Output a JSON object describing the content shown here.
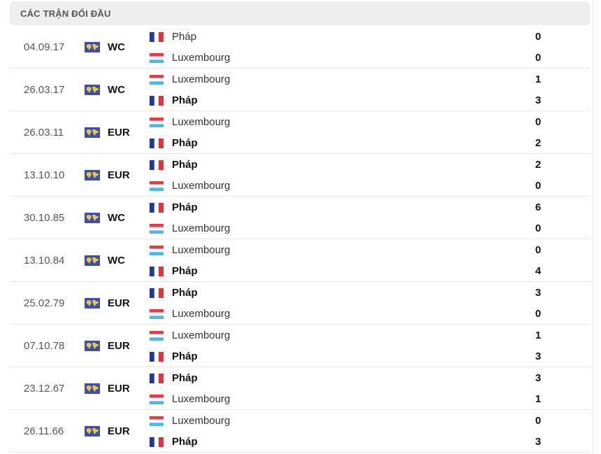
{
  "header": {
    "title": "CÁC TRẬN ĐỐI ĐẦU"
  },
  "colors": {
    "france": [
      "#1f3a93",
      "#ffffff",
      "#e8303a"
    ],
    "luxembourg": [
      "#ea3a41",
      "#ffffff",
      "#4fb6ea"
    ],
    "competition_icon": "#3d4fa8"
  },
  "matches": [
    {
      "date": "04.09.17",
      "comp": "WC",
      "home": {
        "name": "Pháp",
        "flag": "france",
        "score": "0",
        "winner": false
      },
      "away": {
        "name": "Luxembourg",
        "flag": "luxembourg",
        "score": "0",
        "winner": false
      }
    },
    {
      "date": "26.03.17",
      "comp": "WC",
      "home": {
        "name": "Luxembourg",
        "flag": "luxembourg",
        "score": "1",
        "winner": false
      },
      "away": {
        "name": "Pháp",
        "flag": "france",
        "score": "3",
        "winner": true
      }
    },
    {
      "date": "26.03.11",
      "comp": "EUR",
      "home": {
        "name": "Luxembourg",
        "flag": "luxembourg",
        "score": "0",
        "winner": false
      },
      "away": {
        "name": "Pháp",
        "flag": "france",
        "score": "2",
        "winner": true
      }
    },
    {
      "date": "13.10.10",
      "comp": "EUR",
      "home": {
        "name": "Pháp",
        "flag": "france",
        "score": "2",
        "winner": true
      },
      "away": {
        "name": "Luxembourg",
        "flag": "luxembourg",
        "score": "0",
        "winner": false
      }
    },
    {
      "date": "30.10.85",
      "comp": "WC",
      "home": {
        "name": "Pháp",
        "flag": "france",
        "score": "6",
        "winner": true
      },
      "away": {
        "name": "Luxembourg",
        "flag": "luxembourg",
        "score": "0",
        "winner": false
      }
    },
    {
      "date": "13.10.84",
      "comp": "WC",
      "home": {
        "name": "Luxembourg",
        "flag": "luxembourg",
        "score": "0",
        "winner": false
      },
      "away": {
        "name": "Pháp",
        "flag": "france",
        "score": "4",
        "winner": true
      }
    },
    {
      "date": "25.02.79",
      "comp": "EUR",
      "home": {
        "name": "Pháp",
        "flag": "france",
        "score": "3",
        "winner": true
      },
      "away": {
        "name": "Luxembourg",
        "flag": "luxembourg",
        "score": "0",
        "winner": false
      }
    },
    {
      "date": "07.10.78",
      "comp": "EUR",
      "home": {
        "name": "Luxembourg",
        "flag": "luxembourg",
        "score": "1",
        "winner": false
      },
      "away": {
        "name": "Pháp",
        "flag": "france",
        "score": "3",
        "winner": true
      }
    },
    {
      "date": "23.12.67",
      "comp": "EUR",
      "home": {
        "name": "Pháp",
        "flag": "france",
        "score": "3",
        "winner": true
      },
      "away": {
        "name": "Luxembourg",
        "flag": "luxembourg",
        "score": "1",
        "winner": false
      }
    },
    {
      "date": "26.11.66",
      "comp": "EUR",
      "home": {
        "name": "Luxembourg",
        "flag": "luxembourg",
        "score": "0",
        "winner": false
      },
      "away": {
        "name": "Pháp",
        "flag": "france",
        "score": "3",
        "winner": true
      }
    }
  ]
}
